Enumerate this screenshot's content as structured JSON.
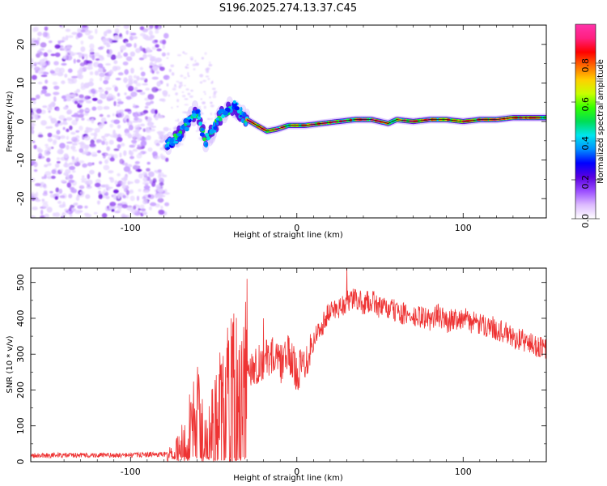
{
  "title": "S196.2025.274.13.37.C45",
  "chart_data": [
    {
      "type": "heatmap",
      "title": "S196.2025.274.13.37.C45",
      "xlabel": "Height of straight line (km)",
      "ylabel": "Frequency (Hz)",
      "xlim": [
        -160,
        150
      ],
      "ylim": [
        -25,
        25
      ],
      "x_ticks": [
        -100,
        0,
        100
      ],
      "y_ticks": [
        -20,
        -10,
        0,
        10,
        20
      ],
      "x_tick_labels": [
        "-100",
        "0",
        "100"
      ],
      "y_tick_labels": [
        "-20",
        "-10",
        "0",
        "10",
        "20"
      ],
      "noise_region_x": [
        -160,
        -78
      ],
      "signal_ridge": [
        {
          "x": -78,
          "y": -6
        },
        {
          "x": -70,
          "y": -3
        },
        {
          "x": -65,
          "y": 0
        },
        {
          "x": -60,
          "y": 3
        },
        {
          "x": -55,
          "y": -5
        },
        {
          "x": -50,
          "y": -2
        },
        {
          "x": -45,
          "y": 2
        },
        {
          "x": -38,
          "y": 4
        },
        {
          "x": -32,
          "y": 1
        },
        {
          "x": -28,
          "y": 0
        },
        {
          "x": -24,
          "y": -1
        },
        {
          "x": -18,
          "y": -2.5
        },
        {
          "x": -12,
          "y": -2
        },
        {
          "x": -5,
          "y": -1
        },
        {
          "x": 5,
          "y": -1
        },
        {
          "x": 15,
          "y": -0.5
        },
        {
          "x": 25,
          "y": 0
        },
        {
          "x": 35,
          "y": 0.5
        },
        {
          "x": 45,
          "y": 0.5
        },
        {
          "x": 55,
          "y": -0.5
        },
        {
          "x": 60,
          "y": 0.5
        },
        {
          "x": 70,
          "y": 0
        },
        {
          "x": 80,
          "y": 0.5
        },
        {
          "x": 90,
          "y": 0.5
        },
        {
          "x": 100,
          "y": 0
        },
        {
          "x": 110,
          "y": 0.5
        },
        {
          "x": 120,
          "y": 0.5
        },
        {
          "x": 130,
          "y": 1
        },
        {
          "x": 150,
          "y": 1
        }
      ],
      "colorbar": {
        "label": "Normalized spectral amplitude",
        "range": [
          0,
          1
        ],
        "ticks": [
          0.0,
          0.2,
          0.4,
          0.6,
          0.8
        ],
        "tick_labels": [
          "0.0",
          "0.2",
          "0.4",
          "0.6",
          "0.8"
        ],
        "colors": [
          "#ffffff",
          "#ddbbff",
          "#9a4dff",
          "#5a00e0",
          "#0000ff",
          "#0090ff",
          "#00e5ee",
          "#00dd55",
          "#33ff00",
          "#c8ff00",
          "#ffd000",
          "#ff6a00",
          "#ff0000",
          "#ff2080",
          "#ff33aa"
        ]
      }
    },
    {
      "type": "line",
      "xlabel": "Height of straight line (km)",
      "ylabel": "SNR (10 * v/v)",
      "xlim": [
        -160,
        150
      ],
      "ylim": [
        0,
        540
      ],
      "x_ticks": [
        -100,
        0,
        100
      ],
      "y_ticks": [
        0,
        100,
        200,
        300,
        400,
        500
      ],
      "x_tick_labels": [
        "-100",
        "0",
        "100"
      ],
      "y_tick_labels": [
        "0",
        "100",
        "200",
        "300",
        "400",
        "500"
      ],
      "line_color": "#ee3333",
      "series": [
        {
          "name": "SNR",
          "x": [
            -160,
            -140,
            -120,
            -100,
            -90,
            -80,
            -75,
            -70,
            -65,
            -60,
            -55,
            -50,
            -45,
            -40,
            -35,
            -30,
            -25,
            -20,
            -15,
            -10,
            -5,
            0,
            5,
            10,
            15,
            20,
            25,
            30,
            35,
            40,
            45,
            50,
            55,
            60,
            65,
            70,
            75,
            80,
            85,
            90,
            95,
            100,
            105,
            110,
            115,
            120,
            125,
            130,
            135,
            140,
            145,
            150
          ],
          "values": [
            18,
            18,
            18,
            18,
            20,
            20,
            25,
            50,
            110,
            160,
            70,
            130,
            200,
            230,
            250,
            260,
            270,
            280,
            300,
            270,
            300,
            250,
            280,
            340,
            380,
            420,
            430,
            445,
            455,
            440,
            450,
            430,
            425,
            420,
            410,
            400,
            405,
            395,
            410,
            390,
            400,
            400,
            390,
            380,
            380,
            370,
            360,
            345,
            340,
            330,
            320,
            315
          ],
          "spikes": [
            {
              "x": -30,
              "value": 510
            },
            {
              "x": -20,
              "value": 400
            },
            {
              "x": 30,
              "value": 540
            }
          ]
        }
      ]
    }
  ]
}
